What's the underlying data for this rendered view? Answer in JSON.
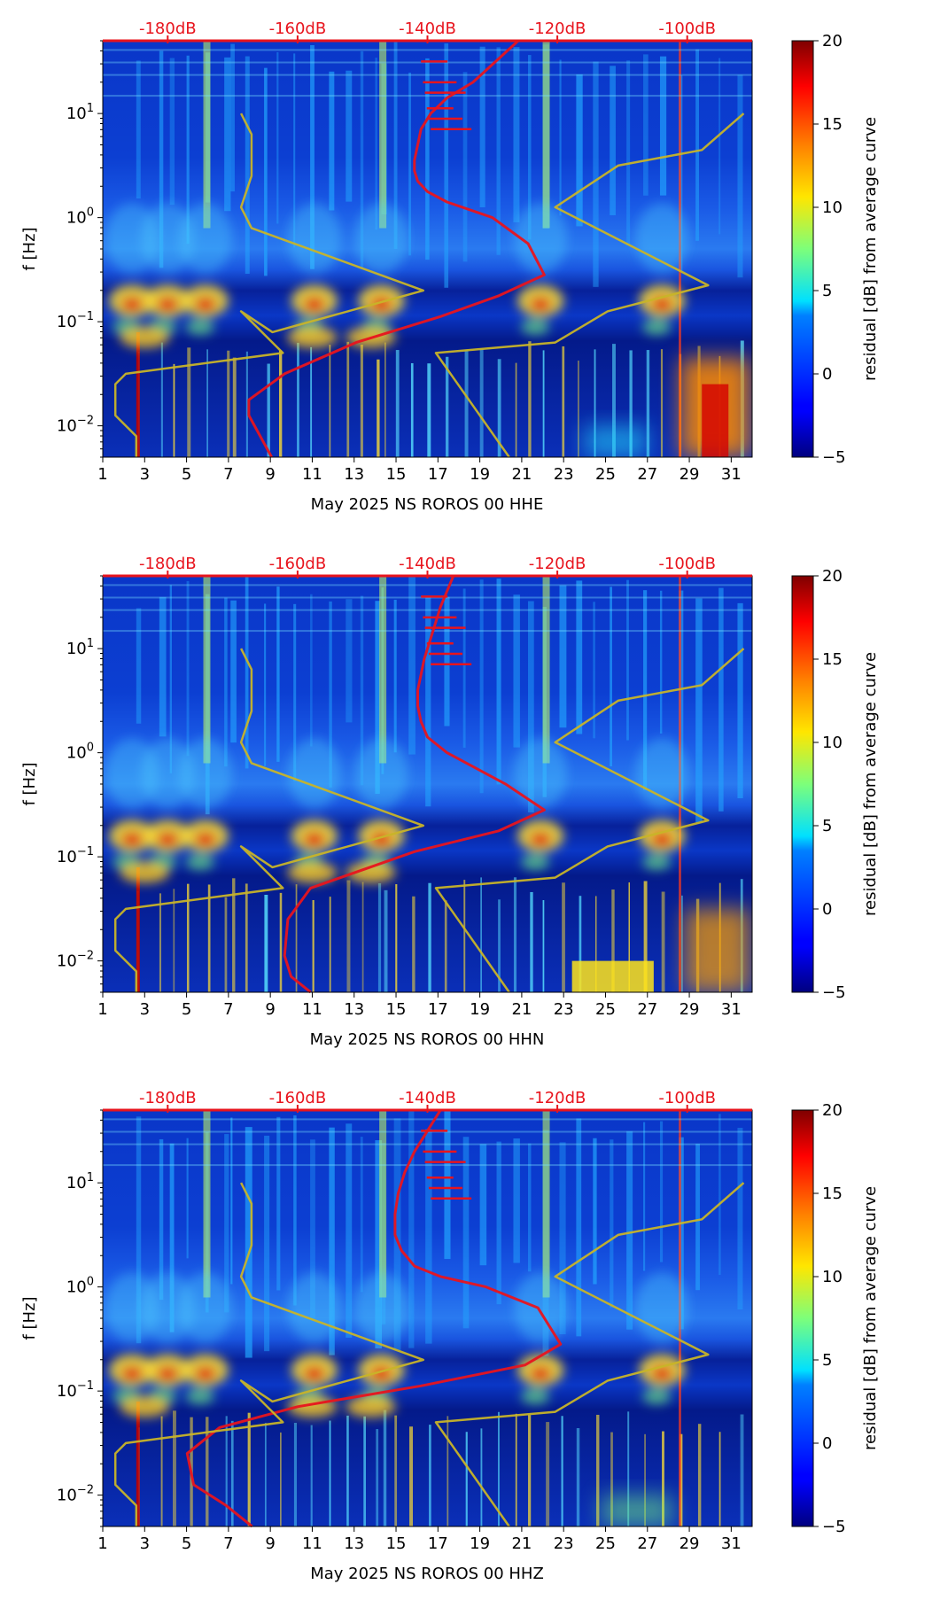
{
  "chart_data": [
    {
      "type": "heatmap",
      "channel": "HHE",
      "xlabel": "May 2025 NS ROROS 00 HHE",
      "ylabel": "f [Hz]",
      "x_ticks": [
        "1",
        "3",
        "5",
        "7",
        "9",
        "11",
        "13",
        "15",
        "17",
        "19",
        "21",
        "23",
        "25",
        "27",
        "29",
        "31"
      ],
      "y_ticks": [
        "10^-2",
        "10^-1",
        "10^0",
        "10^1"
      ],
      "xlim": [
        1,
        32
      ],
      "ylim_hz": [
        0.005,
        50
      ],
      "top_axis": {
        "ticks": [
          "-180dB",
          "-160dB",
          "-140dB",
          "-120dB",
          "-100dB"
        ],
        "color": "#e8141d"
      },
      "colorbar": {
        "label": "residual [dB] from average curve",
        "ticks": [
          "20",
          "15",
          "10",
          "5",
          "0",
          "−5"
        ],
        "range": [
          -5,
          20
        ],
        "colormap": "jet"
      },
      "series": [
        {
          "name": "average PSD curve",
          "color": "#e8141d",
          "db": [
            -126,
            -129.5,
            -133,
            -137,
            -139.5,
            -141,
            -141.5,
            -142,
            -142,
            -141.5,
            -140,
            -137,
            -130,
            -124.5,
            -122,
            -129,
            -138,
            -151,
            -162,
            -167.5,
            -167.5,
            -164
          ],
          "log_f": [
            1.7,
            1.5,
            1.3,
            1.15,
            1.0,
            0.85,
            0.7,
            0.55,
            0.45,
            0.35,
            0.25,
            0.15,
            0,
            -0.25,
            -0.55,
            -0.75,
            -0.95,
            -1.2,
            -1.5,
            -1.75,
            -1.9,
            -2.3
          ]
        },
        {
          "name": "high noise model",
          "color": "#c8b428",
          "x": [
            31.6,
            29.6,
            25.6,
            22.6,
            29.9,
            25.1,
            22.6,
            16.9,
            20.4
          ],
          "log_f": [
            1.0,
            0.65,
            0.5,
            0.1,
            -0.65,
            -0.9,
            -1.2,
            -1.3,
            -2.3
          ]
        },
        {
          "name": "low noise model",
          "color": "#c8b428",
          "x": [
            2.6,
            2.6,
            1.6,
            1.6,
            2.1,
            9.6,
            7.6,
            9.1,
            16.3,
            8.1,
            7.6,
            8.1,
            8.1,
            7.6
          ],
          "log_f": [
            -2.3,
            -2.1,
            -1.9,
            -1.6,
            -1.5,
            -1.3,
            -0.9,
            -1.1,
            -0.7,
            -0.1,
            0.1,
            0.4,
            0.8,
            1.0
          ]
        }
      ]
    },
    {
      "type": "heatmap",
      "channel": "HHN",
      "xlabel": "May 2025 NS ROROS 00 HHN",
      "ylabel": "f [Hz]",
      "x_ticks": [
        "1",
        "3",
        "5",
        "7",
        "9",
        "11",
        "13",
        "15",
        "17",
        "19",
        "21",
        "23",
        "25",
        "27",
        "29",
        "31"
      ],
      "y_ticks": [
        "10^-2",
        "10^-1",
        "10^0",
        "10^1"
      ],
      "xlim": [
        1,
        32
      ],
      "ylim_hz": [
        0.005,
        50
      ],
      "top_axis": {
        "ticks": [
          "-180dB",
          "-160dB",
          "-140dB",
          "-120dB",
          "-100dB"
        ],
        "color": "#e8141d"
      },
      "colorbar": {
        "label": "residual [dB] from average curve",
        "ticks": [
          "20",
          "15",
          "10",
          "5",
          "0",
          "−5"
        ],
        "range": [
          -5,
          20
        ],
        "colormap": "jet"
      },
      "series": [
        {
          "name": "average PSD curve",
          "color": "#e8141d",
          "db": [
            -136,
            -138,
            -139.5,
            -140.5,
            -141,
            -141.5,
            -141.5,
            -141,
            -140,
            -137,
            -128,
            -122,
            -129,
            -142,
            -158,
            -161.5,
            -162,
            -161,
            -158
          ],
          "log_f": [
            1.7,
            1.4,
            1.1,
            0.9,
            0.75,
            0.6,
            0.45,
            0.3,
            0.15,
            0,
            -0.3,
            -0.55,
            -0.75,
            -0.95,
            -1.3,
            -1.6,
            -1.95,
            -2.15,
            -2.3
          ]
        },
        {
          "name": "high noise model",
          "color": "#c8b428",
          "x": [
            31.6,
            29.6,
            25.6,
            22.6,
            29.9,
            25.1,
            22.6,
            16.9,
            20.4
          ],
          "log_f": [
            1.0,
            0.65,
            0.5,
            0.1,
            -0.65,
            -0.9,
            -1.2,
            -1.3,
            -2.3
          ]
        },
        {
          "name": "low noise model",
          "color": "#c8b428",
          "x": [
            2.6,
            2.6,
            1.6,
            1.6,
            2.1,
            9.6,
            7.6,
            9.1,
            16.3,
            8.1,
            7.6,
            8.1,
            8.1,
            7.6
          ],
          "log_f": [
            -2.3,
            -2.1,
            -1.9,
            -1.6,
            -1.5,
            -1.3,
            -0.9,
            -1.1,
            -0.7,
            -0.1,
            0.1,
            0.4,
            0.8,
            1.0
          ]
        }
      ]
    },
    {
      "type": "heatmap",
      "channel": "HHZ",
      "xlabel": "May 2025 NS ROROS 00 HHZ",
      "ylabel": "f [Hz]",
      "x_ticks": [
        "1",
        "3",
        "5",
        "7",
        "9",
        "11",
        "13",
        "15",
        "17",
        "19",
        "21",
        "23",
        "25",
        "27",
        "29",
        "31"
      ],
      "y_ticks": [
        "10^-2",
        "10^-1",
        "10^0",
        "10^1"
      ],
      "xlim": [
        1,
        32
      ],
      "ylim_hz": [
        0.005,
        50
      ],
      "top_axis": {
        "ticks": [
          "-180dB",
          "-160dB",
          "-140dB",
          "-120dB",
          "-100dB"
        ],
        "color": "#e8141d"
      },
      "colorbar": {
        "label": "residual [dB] from average curve",
        "ticks": [
          "20",
          "15",
          "10",
          "5",
          "0",
          "−5"
        ],
        "range": [
          -5,
          20
        ],
        "colormap": "jet"
      },
      "series": [
        {
          "name": "average PSD curve",
          "color": "#e8141d",
          "db": [
            -138,
            -140,
            -142,
            -143.5,
            -144.5,
            -145,
            -145,
            -144,
            -142,
            -138,
            -131,
            -123,
            -119.5,
            -125,
            -141,
            -160,
            -172,
            -177,
            -176,
            -171,
            -167
          ],
          "log_f": [
            1.7,
            1.5,
            1.3,
            1.1,
            0.9,
            0.7,
            0.5,
            0.35,
            0.2,
            0.1,
            0,
            -0.2,
            -0.55,
            -0.75,
            -0.95,
            -1.15,
            -1.35,
            -1.6,
            -1.9,
            -2.1,
            -2.3
          ]
        },
        {
          "name": "high noise model",
          "color": "#c8b428",
          "x": [
            31.6,
            29.6,
            25.6,
            22.6,
            29.9,
            25.1,
            22.6,
            16.9,
            20.4
          ],
          "log_f": [
            1.0,
            0.65,
            0.5,
            0.1,
            -0.65,
            -0.9,
            -1.2,
            -1.3,
            -2.3
          ]
        },
        {
          "name": "low noise model",
          "color": "#c8b428",
          "x": [
            2.6,
            2.6,
            1.6,
            1.6,
            2.1,
            9.6,
            7.6,
            9.1,
            16.3,
            8.1,
            7.6,
            8.1,
            8.1,
            7.6
          ],
          "log_f": [
            -2.3,
            -2.1,
            -1.9,
            -1.6,
            -1.5,
            -1.3,
            -0.9,
            -1.1,
            -0.7,
            -0.1,
            0.1,
            0.4,
            0.8,
            1.0
          ]
        }
      ]
    }
  ]
}
